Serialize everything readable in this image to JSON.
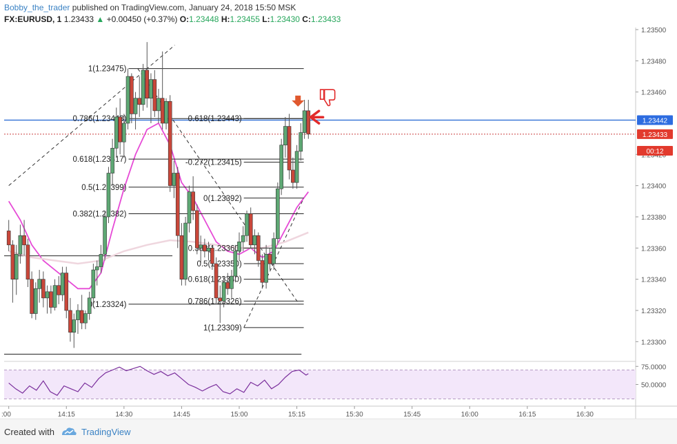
{
  "header": {
    "author": "Bobby_the_trader",
    "published_text": "published on TradingView.com, January 24, 2018 15:50 MSK",
    "symbol": "FX:EURUSD, 1",
    "last": "1.23433",
    "change_arrow": "▲",
    "change": "+0.00450 (+0.37%)",
    "open_label": "O:",
    "open": "1.23448",
    "high_label": "H:",
    "high": "1.23455",
    "low_label": "L:",
    "low": "1.23430",
    "close_label": "C:",
    "close": "1.23433"
  },
  "footer": {
    "created_with": "Created with",
    "brand": "TradingView"
  },
  "chart_data": {
    "type": "candlestick",
    "symbol": "FX:EURUSD",
    "interval": "1",
    "ylim": [
      1.2329,
      1.235
    ],
    "y_ticks": [
      "1.23500",
      "1.23480",
      "1.23460",
      "1.23420",
      "1.23400",
      "1.23380",
      "1.23360",
      "1.23340",
      "1.23320",
      "1.23300"
    ],
    "x_ticks": [
      ":00",
      "14:15",
      "14:30",
      "14:45",
      "15:00",
      "15:15",
      "15:30",
      "15:45",
      "16:00",
      "16:15",
      "16:30"
    ],
    "x_tick_values": [
      14.0,
      14.25,
      14.5,
      14.75,
      15.0,
      15.25,
      15.5,
      15.75,
      16.0,
      16.25,
      16.5
    ],
    "price_markers": [
      {
        "value": "1.23442",
        "price": 1.23442,
        "color": "#2d6ce0"
      },
      {
        "value": "1.23433",
        "price": 1.23433,
        "color": "#e23a2d"
      },
      {
        "value": "00:12",
        "price": 1.23425,
        "color": "#e23a2d"
      }
    ],
    "candles": [
      {
        "t": 14.0,
        "o": 1.23371,
        "h": 1.23378,
        "l": 1.23358,
        "c": 1.23362
      },
      {
        "t": 14.017,
        "o": 1.23362,
        "h": 1.23365,
        "l": 1.23325,
        "c": 1.2334
      },
      {
        "t": 14.033,
        "o": 1.2334,
        "h": 1.23362,
        "l": 1.2333,
        "c": 1.23356
      },
      {
        "t": 14.05,
        "o": 1.23356,
        "h": 1.23375,
        "l": 1.2335,
        "c": 1.23368
      },
      {
        "t": 14.067,
        "o": 1.23368,
        "h": 1.23378,
        "l": 1.23355,
        "c": 1.23362
      },
      {
        "t": 14.083,
        "o": 1.23362,
        "h": 1.23366,
        "l": 1.23335,
        "c": 1.2334
      },
      {
        "t": 14.1,
        "o": 1.2334,
        "h": 1.23345,
        "l": 1.23315,
        "c": 1.23318
      },
      {
        "t": 14.117,
        "o": 1.23318,
        "h": 1.23338,
        "l": 1.23314,
        "c": 1.23334
      },
      {
        "t": 14.133,
        "o": 1.23334,
        "h": 1.23346,
        "l": 1.23325,
        "c": 1.2334
      },
      {
        "t": 14.15,
        "o": 1.2334,
        "h": 1.23345,
        "l": 1.23322,
        "c": 1.23328
      },
      {
        "t": 14.167,
        "o": 1.23328,
        "h": 1.23336,
        "l": 1.23318,
        "c": 1.23332
      },
      {
        "t": 14.183,
        "o": 1.23332,
        "h": 1.23336,
        "l": 1.23318,
        "c": 1.23322
      },
      {
        "t": 14.2,
        "o": 1.23322,
        "h": 1.2334,
        "l": 1.2332,
        "c": 1.23336
      },
      {
        "t": 14.217,
        "o": 1.23336,
        "h": 1.23342,
        "l": 1.23324,
        "c": 1.2333
      },
      {
        "t": 14.233,
        "o": 1.2333,
        "h": 1.23348,
        "l": 1.23326,
        "c": 1.23344
      },
      {
        "t": 14.25,
        "o": 1.23344,
        "h": 1.23348,
        "l": 1.23315,
        "c": 1.2332
      },
      {
        "t": 14.267,
        "o": 1.2332,
        "h": 1.23328,
        "l": 1.233,
        "c": 1.23306
      },
      {
        "t": 14.283,
        "o": 1.23306,
        "h": 1.23318,
        "l": 1.23296,
        "c": 1.23314
      },
      {
        "t": 14.3,
        "o": 1.23314,
        "h": 1.23324,
        "l": 1.23305,
        "c": 1.2332
      },
      {
        "t": 14.317,
        "o": 1.2332,
        "h": 1.2333,
        "l": 1.23308,
        "c": 1.23312
      },
      {
        "t": 14.333,
        "o": 1.23312,
        "h": 1.2332,
        "l": 1.23308,
        "c": 1.23318
      },
      {
        "t": 14.35,
        "o": 1.23318,
        "h": 1.23332,
        "l": 1.23314,
        "c": 1.23328
      },
      {
        "t": 14.367,
        "o": 1.23328,
        "h": 1.2335,
        "l": 1.23322,
        "c": 1.23346
      },
      {
        "t": 14.383,
        "o": 1.23346,
        "h": 1.23352,
        "l": 1.23336,
        "c": 1.23348
      },
      {
        "t": 14.4,
        "o": 1.23348,
        "h": 1.23362,
        "l": 1.23344,
        "c": 1.23356
      },
      {
        "t": 14.417,
        "o": 1.23356,
        "h": 1.23384,
        "l": 1.23352,
        "c": 1.2338
      },
      {
        "t": 14.433,
        "o": 1.2338,
        "h": 1.23412,
        "l": 1.23376,
        "c": 1.23408
      },
      {
        "t": 14.45,
        "o": 1.23408,
        "h": 1.2343,
        "l": 1.234,
        "c": 1.23424
      },
      {
        "t": 14.467,
        "o": 1.23424,
        "h": 1.2345,
        "l": 1.23418,
        "c": 1.23444
      },
      {
        "t": 14.483,
        "o": 1.23444,
        "h": 1.23456,
        "l": 1.2342,
        "c": 1.23428
      },
      {
        "t": 14.5,
        "o": 1.23428,
        "h": 1.23446,
        "l": 1.23418,
        "c": 1.2344
      },
      {
        "t": 14.517,
        "o": 1.2344,
        "h": 1.23475,
        "l": 1.23436,
        "c": 1.2347
      },
      {
        "t": 14.533,
        "o": 1.2347,
        "h": 1.23472,
        "l": 1.2344,
        "c": 1.23446
      },
      {
        "t": 14.55,
        "o": 1.23446,
        "h": 1.2346,
        "l": 1.23436,
        "c": 1.23456
      },
      {
        "t": 14.567,
        "o": 1.23456,
        "h": 1.2347,
        "l": 1.23444,
        "c": 1.23452
      },
      {
        "t": 14.583,
        "o": 1.23452,
        "h": 1.23478,
        "l": 1.23448,
        "c": 1.23474
      },
      {
        "t": 14.6,
        "o": 1.23474,
        "h": 1.23492,
        "l": 1.2345,
        "c": 1.23456
      },
      {
        "t": 14.617,
        "o": 1.23456,
        "h": 1.23472,
        "l": 1.2344,
        "c": 1.23468
      },
      {
        "t": 14.633,
        "o": 1.23468,
        "h": 1.23474,
        "l": 1.23444,
        "c": 1.23448
      },
      {
        "t": 14.65,
        "o": 1.23448,
        "h": 1.23462,
        "l": 1.2344,
        "c": 1.23456
      },
      {
        "t": 14.667,
        "o": 1.23456,
        "h": 1.23486,
        "l": 1.23436,
        "c": 1.2344
      },
      {
        "t": 14.683,
        "o": 1.2344,
        "h": 1.23456,
        "l": 1.23436,
        "c": 1.23454
      },
      {
        "t": 14.7,
        "o": 1.23454,
        "h": 1.23458,
        "l": 1.23396,
        "c": 1.234
      },
      {
        "t": 14.717,
        "o": 1.234,
        "h": 1.23416,
        "l": 1.23392,
        "c": 1.23408
      },
      {
        "t": 14.733,
        "o": 1.23408,
        "h": 1.23412,
        "l": 1.2336,
        "c": 1.23368
      },
      {
        "t": 14.75,
        "o": 1.23368,
        "h": 1.23376,
        "l": 1.23336,
        "c": 1.2334
      },
      {
        "t": 14.767,
        "o": 1.2334,
        "h": 1.2338,
        "l": 1.23336,
        "c": 1.23376
      },
      {
        "t": 14.783,
        "o": 1.23376,
        "h": 1.234,
        "l": 1.2337,
        "c": 1.23396
      },
      {
        "t": 14.8,
        "o": 1.23396,
        "h": 1.23406,
        "l": 1.23378,
        "c": 1.23384
      },
      {
        "t": 14.817,
        "o": 1.23384,
        "h": 1.23388,
        "l": 1.23356,
        "c": 1.2336
      },
      {
        "t": 14.833,
        "o": 1.2336,
        "h": 1.23368,
        "l": 1.2335,
        "c": 1.23362
      },
      {
        "t": 14.85,
        "o": 1.23362,
        "h": 1.23366,
        "l": 1.23354,
        "c": 1.23358
      },
      {
        "t": 14.867,
        "o": 1.23358,
        "h": 1.23364,
        "l": 1.23352,
        "c": 1.2336
      },
      {
        "t": 14.883,
        "o": 1.2336,
        "h": 1.23362,
        "l": 1.23346,
        "c": 1.2335
      },
      {
        "t": 14.9,
        "o": 1.2335,
        "h": 1.23354,
        "l": 1.23324,
        "c": 1.23328
      },
      {
        "t": 14.917,
        "o": 1.23328,
        "h": 1.23336,
        "l": 1.23312,
        "c": 1.23326
      },
      {
        "t": 14.933,
        "o": 1.23326,
        "h": 1.23342,
        "l": 1.23322,
        "c": 1.23338
      },
      {
        "t": 14.95,
        "o": 1.23338,
        "h": 1.23344,
        "l": 1.2333,
        "c": 1.23334
      },
      {
        "t": 14.967,
        "o": 1.23334,
        "h": 1.23346,
        "l": 1.23328,
        "c": 1.23342
      },
      {
        "t": 14.983,
        "o": 1.23342,
        "h": 1.23362,
        "l": 1.23338,
        "c": 1.23358
      },
      {
        "t": 15.0,
        "o": 1.23358,
        "h": 1.2337,
        "l": 1.23352,
        "c": 1.23364
      },
      {
        "t": 15.017,
        "o": 1.23364,
        "h": 1.23374,
        "l": 1.23358,
        "c": 1.23368
      },
      {
        "t": 15.033,
        "o": 1.23368,
        "h": 1.23384,
        "l": 1.23364,
        "c": 1.23382
      },
      {
        "t": 15.05,
        "o": 1.23382,
        "h": 1.23386,
        "l": 1.2336,
        "c": 1.23362
      },
      {
        "t": 15.067,
        "o": 1.23362,
        "h": 1.23372,
        "l": 1.23356,
        "c": 1.23368
      },
      {
        "t": 15.083,
        "o": 1.23368,
        "h": 1.2337,
        "l": 1.23348,
        "c": 1.23352
      },
      {
        "t": 15.1,
        "o": 1.23352,
        "h": 1.23356,
        "l": 1.23334,
        "c": 1.23338
      },
      {
        "t": 15.117,
        "o": 1.23338,
        "h": 1.23362,
        "l": 1.23334,
        "c": 1.23356
      },
      {
        "t": 15.133,
        "o": 1.23356,
        "h": 1.2336,
        "l": 1.23346,
        "c": 1.2335
      },
      {
        "t": 15.15,
        "o": 1.2335,
        "h": 1.2337,
        "l": 1.23346,
        "c": 1.23366
      },
      {
        "t": 15.167,
        "o": 1.23366,
        "h": 1.23402,
        "l": 1.23362,
        "c": 1.23398
      },
      {
        "t": 15.183,
        "o": 1.23398,
        "h": 1.2343,
        "l": 1.23394,
        "c": 1.23426
      },
      {
        "t": 15.2,
        "o": 1.23426,
        "h": 1.23444,
        "l": 1.23418,
        "c": 1.23438
      },
      {
        "t": 15.217,
        "o": 1.23438,
        "h": 1.23446,
        "l": 1.23404,
        "c": 1.2341
      },
      {
        "t": 15.233,
        "o": 1.2341,
        "h": 1.23418,
        "l": 1.23398,
        "c": 1.23402
      },
      {
        "t": 15.25,
        "o": 1.23402,
        "h": 1.23426,
        "l": 1.23398,
        "c": 1.23422
      },
      {
        "t": 15.267,
        "o": 1.23422,
        "h": 1.2344,
        "l": 1.23416,
        "c": 1.23434
      },
      {
        "t": 15.283,
        "o": 1.23434,
        "h": 1.23455,
        "l": 1.2343,
        "c": 1.23448
      },
      {
        "t": 15.3,
        "o": 1.23448,
        "h": 1.23455,
        "l": 1.2343,
        "c": 1.23433
      }
    ],
    "overlays": [
      {
        "name": "ma_fast",
        "color": "#e64ad6",
        "points": [
          [
            14.0,
            1.2339
          ],
          [
            14.05,
            1.23378
          ],
          [
            14.1,
            1.23362
          ],
          [
            14.15,
            1.23352
          ],
          [
            14.2,
            1.23346
          ],
          [
            14.25,
            1.2334
          ],
          [
            14.3,
            1.23334
          ],
          [
            14.35,
            1.23334
          ],
          [
            14.4,
            1.23344
          ],
          [
            14.45,
            1.23372
          ],
          [
            14.5,
            1.23398
          ],
          [
            14.55,
            1.2342
          ],
          [
            14.6,
            1.23436
          ],
          [
            14.65,
            1.2344
          ],
          [
            14.7,
            1.23426
          ],
          [
            14.75,
            1.23402
          ],
          [
            14.8,
            1.23392
          ],
          [
            14.85,
            1.23378
          ],
          [
            14.9,
            1.23364
          ],
          [
            14.95,
            1.23358
          ],
          [
            15.0,
            1.23356
          ],
          [
            15.05,
            1.2336
          ],
          [
            15.1,
            1.23354
          ],
          [
            15.15,
            1.23358
          ],
          [
            15.2,
            1.23372
          ],
          [
            15.25,
            1.23386
          ],
          [
            15.3,
            1.23396
          ]
        ]
      },
      {
        "name": "ma_slow",
        "color": "#efd6de",
        "points": [
          [
            14.0,
            1.23358
          ],
          [
            14.1,
            1.23354
          ],
          [
            14.2,
            1.23352
          ],
          [
            14.3,
            1.2335
          ],
          [
            14.4,
            1.23352
          ],
          [
            14.5,
            1.23358
          ],
          [
            14.6,
            1.23362
          ],
          [
            14.7,
            1.23365
          ],
          [
            14.8,
            1.23364
          ],
          [
            14.9,
            1.23362
          ],
          [
            15.0,
            1.2336
          ],
          [
            15.1,
            1.2336
          ],
          [
            15.2,
            1.23364
          ],
          [
            15.3,
            1.2337
          ]
        ]
      }
    ],
    "horizontal_lines": [
      {
        "price": 1.23442,
        "from": 13.98,
        "to": 16.72,
        "color": "#3c78d8",
        "style": "solid",
        "width": 1.5
      },
      {
        "price": 1.23433,
        "from": 13.98,
        "to": 16.72,
        "color": "#c93c3c",
        "style": "dotted",
        "width": 1
      },
      {
        "price": 1.23355,
        "from": 13.98,
        "to": 14.71,
        "color": "#222",
        "style": "solid",
        "width": 1
      },
      {
        "price": 1.23292,
        "from": 13.98,
        "to": 15.27,
        "color": "#222",
        "style": "solid",
        "width": 1
      }
    ],
    "fib_left": {
      "from": 14.52,
      "to": 15.28,
      "levels": [
        {
          "label": "1(1.23475)",
          "price": 1.23475
        },
        {
          "label": "0.786(1.23443)",
          "price": 1.23443
        },
        {
          "label": "0.618(1.23417)",
          "price": 1.23417
        },
        {
          "label": "0.5(1.23399)",
          "price": 1.23399
        },
        {
          "label": "0.382(1.23382)",
          "price": 1.23382
        },
        {
          "label": "0(1.23324)",
          "price": 1.23324
        }
      ]
    },
    "fib_right": {
      "from": 15.02,
      "to": 15.28,
      "levels": [
        {
          "label": "0.618(1.23443)",
          "price": 1.23443
        },
        {
          "label": "-0.272(1.23415)",
          "price": 1.23415
        },
        {
          "label": "0(1.23392)",
          "price": 1.23392
        },
        {
          "label": "0.382(1.23360)",
          "price": 1.2336
        },
        {
          "label": "0.5(1.23350)",
          "price": 1.2335
        },
        {
          "label": "0.618(1.23340)",
          "price": 1.2334
        },
        {
          "label": "0.786(1.23326)",
          "price": 1.23326
        },
        {
          "label": "1(1.23309)",
          "price": 1.23309
        }
      ]
    },
    "dashed_lines": [
      [
        [
          14.0,
          1.234
        ],
        [
          14.72,
          1.2349
        ]
      ],
      [
        [
          14.56,
          1.23475
        ],
        [
          15.26,
          1.23324
        ]
      ],
      [
        [
          15.02,
          1.23309
        ],
        [
          15.28,
          1.23392
        ]
      ]
    ],
    "annotations": [
      {
        "name": "down-arrow",
        "t": 15.255,
        "price": 1.23448,
        "color": "#e0582e"
      },
      {
        "name": "left-arrow",
        "t": 15.31,
        "price": 1.23443,
        "color": "#e22b2b"
      },
      {
        "name": "thumbs-down",
        "t": 15.37,
        "price": 1.23458,
        "color": "#e22b2b"
      }
    ],
    "rsi": {
      "ylim": [
        20,
        80
      ],
      "ticks": [
        "75.0000",
        "50.0000"
      ],
      "band": [
        30,
        70
      ],
      "color": "#7a2e9c",
      "x": [
        14.0,
        14.03,
        14.06,
        14.09,
        14.12,
        14.15,
        14.18,
        14.21,
        14.24,
        14.27,
        14.3,
        14.33,
        14.36,
        14.39,
        14.42,
        14.45,
        14.48,
        14.51,
        14.54,
        14.57,
        14.6,
        14.63,
        14.66,
        14.69,
        14.72,
        14.75,
        14.78,
        14.81,
        14.84,
        14.87,
        14.9,
        14.93,
        14.96,
        14.99,
        15.02,
        15.05,
        15.08,
        15.11,
        15.14,
        15.17,
        15.2,
        15.23,
        15.26,
        15.29,
        15.3
      ],
      "values": [
        52,
        44,
        38,
        48,
        42,
        55,
        40,
        35,
        48,
        44,
        40,
        52,
        46,
        58,
        66,
        70,
        74,
        69,
        72,
        75,
        69,
        64,
        68,
        62,
        66,
        58,
        50,
        46,
        41,
        46,
        50,
        40,
        37,
        44,
        39,
        53,
        48,
        56,
        44,
        50,
        60,
        68,
        70,
        63,
        65
      ]
    }
  }
}
